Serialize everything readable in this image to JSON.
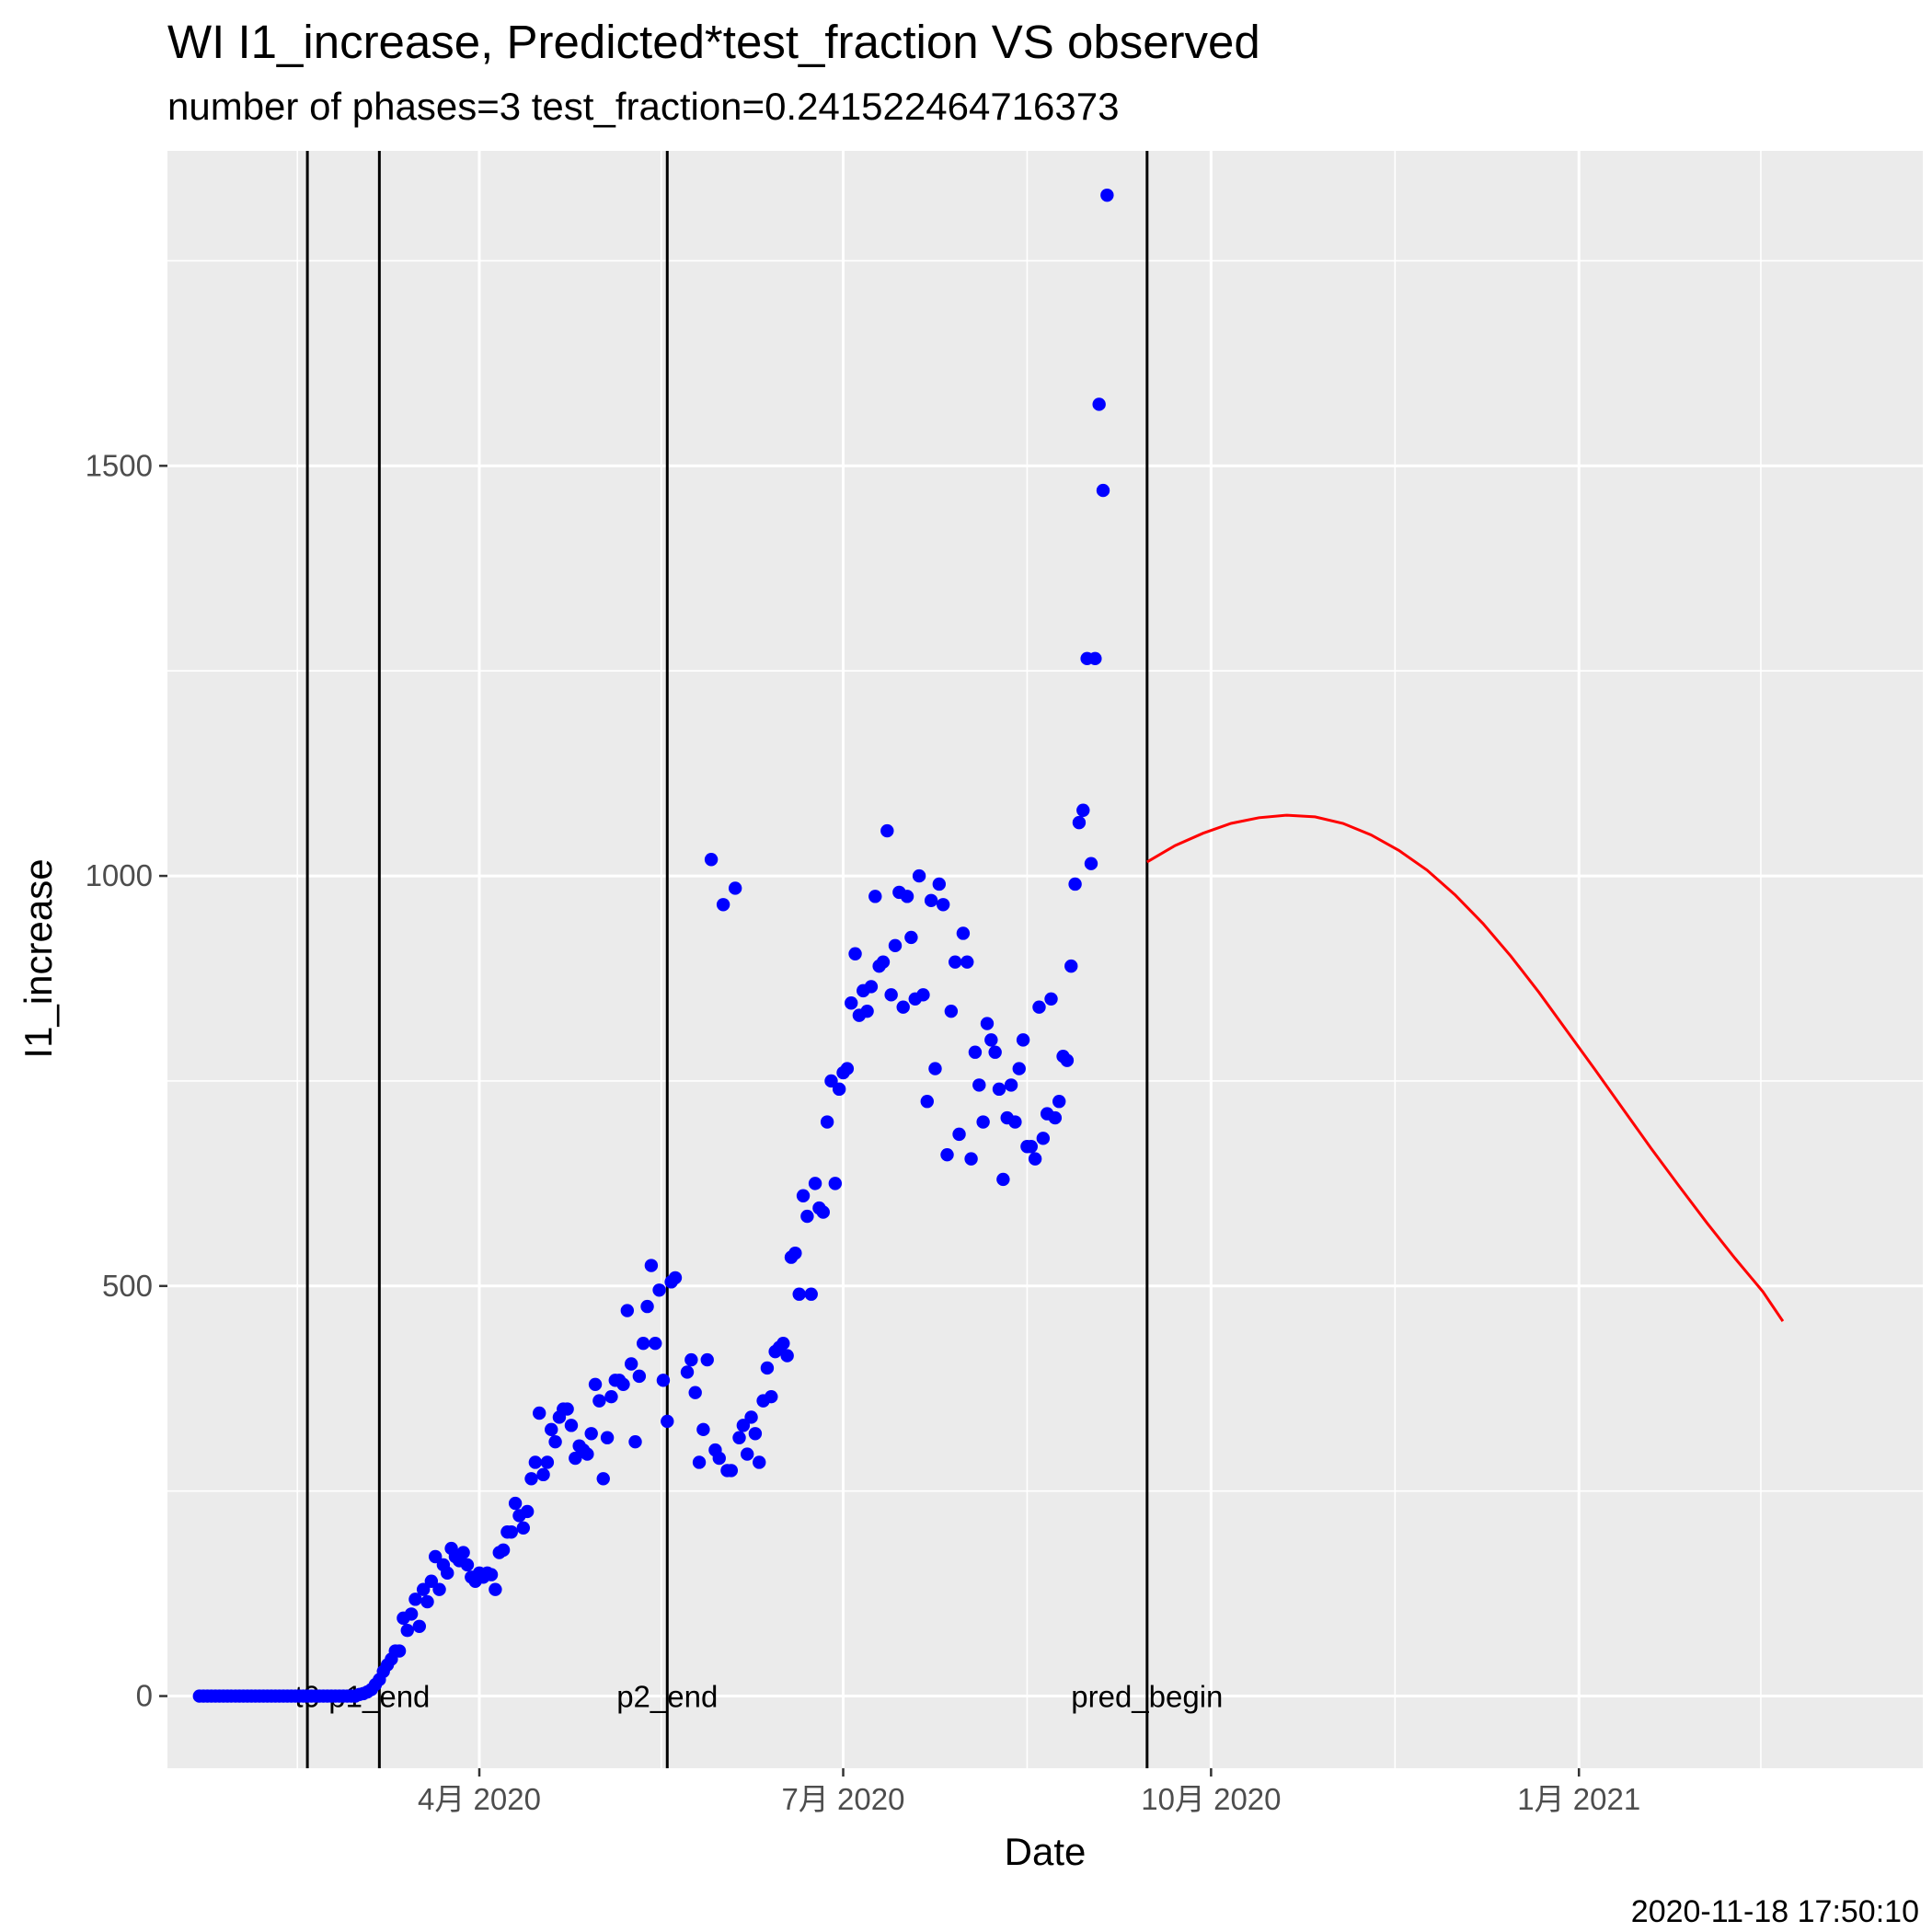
{
  "chart_data": {
    "type": "scatter",
    "title": "WI I1_increase, Predicted*test_fraction VS observed",
    "subtitle": "number of phases=3   test_fraction=0.241522464716373",
    "xlabel": "Date",
    "ylabel": "I1_increase",
    "timestamp": "2020-11-18 17:50:10",
    "x_type": "date",
    "xlim": [
      "2020-01-14",
      "2021-03-28"
    ],
    "ylim": [
      -88,
      1884
    ],
    "x_ticks": [
      {
        "date": "2020-04-01",
        "label": "4月 2020"
      },
      {
        "date": "2020-07-01",
        "label": "7月 2020"
      },
      {
        "date": "2020-10-01",
        "label": "10月 2020"
      },
      {
        "date": "2021-01-01",
        "label": "1月 2021"
      }
    ],
    "y_ticks": [
      0,
      500,
      1000,
      1500
    ],
    "grid": true,
    "vertical_lines": [
      {
        "date": "2020-02-18",
        "label": "t0"
      },
      {
        "date": "2020-03-07",
        "label": "p1_end"
      },
      {
        "date": "2020-05-18",
        "label": "p2_end"
      },
      {
        "date": "2020-09-15",
        "label": "pred_begin"
      }
    ],
    "series": [
      {
        "type": "scatter",
        "color": "#0000ff",
        "points": [
          [
            "2020-01-22",
            0
          ],
          [
            "2020-01-23",
            0
          ],
          [
            "2020-01-24",
            0
          ],
          [
            "2020-01-25",
            0
          ],
          [
            "2020-01-26",
            0
          ],
          [
            "2020-01-27",
            0
          ],
          [
            "2020-01-28",
            0
          ],
          [
            "2020-01-29",
            0
          ],
          [
            "2020-01-30",
            0
          ],
          [
            "2020-01-31",
            0
          ],
          [
            "2020-02-01",
            0
          ],
          [
            "2020-02-02",
            0
          ],
          [
            "2020-02-03",
            0
          ],
          [
            "2020-02-04",
            0
          ],
          [
            "2020-02-05",
            0
          ],
          [
            "2020-02-06",
            0
          ],
          [
            "2020-02-07",
            0
          ],
          [
            "2020-02-08",
            0
          ],
          [
            "2020-02-09",
            0
          ],
          [
            "2020-02-10",
            0
          ],
          [
            "2020-02-11",
            0
          ],
          [
            "2020-02-12",
            0
          ],
          [
            "2020-02-13",
            0
          ],
          [
            "2020-02-14",
            0
          ],
          [
            "2020-02-15",
            0
          ],
          [
            "2020-02-16",
            0
          ],
          [
            "2020-02-17",
            0
          ],
          [
            "2020-02-18",
            0
          ],
          [
            "2020-02-19",
            0
          ],
          [
            "2020-02-20",
            0
          ],
          [
            "2020-02-21",
            0
          ],
          [
            "2020-02-22",
            0
          ],
          [
            "2020-02-23",
            0
          ],
          [
            "2020-02-24",
            0
          ],
          [
            "2020-02-25",
            0
          ],
          [
            "2020-02-26",
            0
          ],
          [
            "2020-02-27",
            0
          ],
          [
            "2020-02-28",
            0
          ],
          [
            "2020-02-29",
            0
          ],
          [
            "2020-03-01",
            0
          ],
          [
            "2020-03-02",
            2
          ],
          [
            "2020-03-03",
            3
          ],
          [
            "2020-03-04",
            5
          ],
          [
            "2020-03-05",
            8
          ],
          [
            "2020-03-06",
            14
          ],
          [
            "2020-03-07",
            20
          ],
          [
            "2020-03-08",
            30
          ],
          [
            "2020-03-09",
            38
          ],
          [
            "2020-03-10",
            45
          ],
          [
            "2020-03-11",
            55
          ],
          [
            "2020-03-12",
            55
          ],
          [
            "2020-03-13",
            95
          ],
          [
            "2020-03-14",
            80
          ],
          [
            "2020-03-15",
            100
          ],
          [
            "2020-03-16",
            118
          ],
          [
            "2020-03-17",
            85
          ],
          [
            "2020-03-18",
            130
          ],
          [
            "2020-03-19",
            115
          ],
          [
            "2020-03-20",
            140
          ],
          [
            "2020-03-21",
            170
          ],
          [
            "2020-03-22",
            130
          ],
          [
            "2020-03-23",
            160
          ],
          [
            "2020-03-24",
            150
          ],
          [
            "2020-03-25",
            180
          ],
          [
            "2020-03-26",
            170
          ],
          [
            "2020-03-27",
            165
          ],
          [
            "2020-03-28",
            175
          ],
          [
            "2020-03-29",
            160
          ],
          [
            "2020-03-30",
            145
          ],
          [
            "2020-03-31",
            140
          ],
          [
            "2020-04-01",
            150
          ],
          [
            "2020-04-02",
            145
          ],
          [
            "2020-04-03",
            150
          ],
          [
            "2020-04-04",
            148
          ],
          [
            "2020-04-05",
            130
          ],
          [
            "2020-04-06",
            175
          ],
          [
            "2020-04-07",
            178
          ],
          [
            "2020-04-08",
            200
          ],
          [
            "2020-04-09",
            200
          ],
          [
            "2020-04-10",
            235
          ],
          [
            "2020-04-11",
            220
          ],
          [
            "2020-04-12",
            205
          ],
          [
            "2020-04-13",
            225
          ],
          [
            "2020-04-14",
            265
          ],
          [
            "2020-04-15",
            285
          ],
          [
            "2020-04-16",
            345
          ],
          [
            "2020-04-17",
            270
          ],
          [
            "2020-04-18",
            285
          ],
          [
            "2020-04-19",
            325
          ],
          [
            "2020-04-20",
            310
          ],
          [
            "2020-04-21",
            340
          ],
          [
            "2020-04-22",
            350
          ],
          [
            "2020-04-23",
            350
          ],
          [
            "2020-04-24",
            330
          ],
          [
            "2020-04-25",
            290
          ],
          [
            "2020-04-26",
            305
          ],
          [
            "2020-04-27",
            300
          ],
          [
            "2020-04-28",
            295
          ],
          [
            "2020-04-29",
            320
          ],
          [
            "2020-04-30",
            380
          ],
          [
            "2020-05-01",
            360
          ],
          [
            "2020-05-02",
            265
          ],
          [
            "2020-05-03",
            315
          ],
          [
            "2020-05-04",
            365
          ],
          [
            "2020-05-05",
            385
          ],
          [
            "2020-05-06",
            385
          ],
          [
            "2020-05-07",
            380
          ],
          [
            "2020-05-08",
            470
          ],
          [
            "2020-05-09",
            405
          ],
          [
            "2020-05-10",
            310
          ],
          [
            "2020-05-11",
            390
          ],
          [
            "2020-05-12",
            430
          ],
          [
            "2020-05-13",
            475
          ],
          [
            "2020-05-14",
            525
          ],
          [
            "2020-05-15",
            430
          ],
          [
            "2020-05-16",
            495
          ],
          [
            "2020-05-17",
            385
          ],
          [
            "2020-05-18",
            335
          ],
          [
            "2020-05-19",
            505
          ],
          [
            "2020-05-20",
            510
          ],
          [
            "2020-05-23",
            395
          ],
          [
            "2020-05-24",
            410
          ],
          [
            "2020-05-25",
            370
          ],
          [
            "2020-05-26",
            285
          ],
          [
            "2020-05-27",
            325
          ],
          [
            "2020-05-28",
            410
          ],
          [
            "2020-05-29",
            1020
          ],
          [
            "2020-05-30",
            300
          ],
          [
            "2020-05-31",
            290
          ],
          [
            "2020-06-01",
            965
          ],
          [
            "2020-06-02",
            275
          ],
          [
            "2020-06-03",
            275
          ],
          [
            "2020-06-04",
            985
          ],
          [
            "2020-06-05",
            315
          ],
          [
            "2020-06-06",
            330
          ],
          [
            "2020-06-07",
            295
          ],
          [
            "2020-06-08",
            340
          ],
          [
            "2020-06-09",
            320
          ],
          [
            "2020-06-10",
            285
          ],
          [
            "2020-06-11",
            360
          ],
          [
            "2020-06-12",
            400
          ],
          [
            "2020-06-13",
            365
          ],
          [
            "2020-06-14",
            420
          ],
          [
            "2020-06-15",
            425
          ],
          [
            "2020-06-16",
            430
          ],
          [
            "2020-06-17",
            415
          ],
          [
            "2020-06-18",
            535
          ],
          [
            "2020-06-19",
            540
          ],
          [
            "2020-06-20",
            490
          ],
          [
            "2020-06-21",
            610
          ],
          [
            "2020-06-22",
            585
          ],
          [
            "2020-06-23",
            490
          ],
          [
            "2020-06-24",
            625
          ],
          [
            "2020-06-25",
            595
          ],
          [
            "2020-06-26",
            590
          ],
          [
            "2020-06-27",
            700
          ],
          [
            "2020-06-28",
            750
          ],
          [
            "2020-06-29",
            625
          ],
          [
            "2020-06-30",
            740
          ],
          [
            "2020-07-01",
            760
          ],
          [
            "2020-07-02",
            765
          ],
          [
            "2020-07-03",
            845
          ],
          [
            "2020-07-04",
            905
          ],
          [
            "2020-07-05",
            830
          ],
          [
            "2020-07-06",
            860
          ],
          [
            "2020-07-07",
            835
          ],
          [
            "2020-07-08",
            865
          ],
          [
            "2020-07-09",
            975
          ],
          [
            "2020-07-10",
            890
          ],
          [
            "2020-07-11",
            895
          ],
          [
            "2020-07-12",
            1055
          ],
          [
            "2020-07-13",
            855
          ],
          [
            "2020-07-14",
            915
          ],
          [
            "2020-07-15",
            980
          ],
          [
            "2020-07-16",
            840
          ],
          [
            "2020-07-17",
            975
          ],
          [
            "2020-07-18",
            925
          ],
          [
            "2020-07-19",
            850
          ],
          [
            "2020-07-20",
            1000
          ],
          [
            "2020-07-21",
            855
          ],
          [
            "2020-07-22",
            725
          ],
          [
            "2020-07-23",
            970
          ],
          [
            "2020-07-24",
            765
          ],
          [
            "2020-07-25",
            990
          ],
          [
            "2020-07-26",
            965
          ],
          [
            "2020-07-27",
            660
          ],
          [
            "2020-07-28",
            835
          ],
          [
            "2020-07-29",
            895
          ],
          [
            "2020-07-30",
            685
          ],
          [
            "2020-07-31",
            930
          ],
          [
            "2020-08-01",
            895
          ],
          [
            "2020-08-02",
            655
          ],
          [
            "2020-08-03",
            785
          ],
          [
            "2020-08-04",
            745
          ],
          [
            "2020-08-05",
            700
          ],
          [
            "2020-08-06",
            820
          ],
          [
            "2020-08-07",
            800
          ],
          [
            "2020-08-08",
            785
          ],
          [
            "2020-08-09",
            740
          ],
          [
            "2020-08-10",
            630
          ],
          [
            "2020-08-11",
            705
          ],
          [
            "2020-08-12",
            745
          ],
          [
            "2020-08-13",
            700
          ],
          [
            "2020-08-14",
            765
          ],
          [
            "2020-08-15",
            800
          ],
          [
            "2020-08-16",
            670
          ],
          [
            "2020-08-17",
            670
          ],
          [
            "2020-08-18",
            655
          ],
          [
            "2020-08-19",
            840
          ],
          [
            "2020-08-20",
            680
          ],
          [
            "2020-08-21",
            710
          ],
          [
            "2020-08-22",
            850
          ],
          [
            "2020-08-23",
            705
          ],
          [
            "2020-08-24",
            725
          ],
          [
            "2020-08-25",
            780
          ],
          [
            "2020-08-26",
            775
          ],
          [
            "2020-08-27",
            890
          ],
          [
            "2020-08-28",
            990
          ],
          [
            "2020-08-29",
            1065
          ],
          [
            "2020-08-30",
            1080
          ],
          [
            "2020-08-31",
            1265
          ],
          [
            "2020-09-01",
            1015
          ],
          [
            "2020-09-02",
            1265
          ],
          [
            "2020-09-03",
            1575
          ],
          [
            "2020-09-04",
            1470
          ],
          [
            "2020-09-05",
            1830
          ]
        ]
      },
      {
        "type": "line",
        "color": "#ff0000",
        "points": [
          [
            "2020-09-15",
            1017
          ],
          [
            "2020-09-22",
            1037
          ],
          [
            "2020-09-29",
            1052
          ],
          [
            "2020-10-06",
            1064
          ],
          [
            "2020-10-13",
            1071
          ],
          [
            "2020-10-20",
            1074
          ],
          [
            "2020-10-27",
            1072
          ],
          [
            "2020-11-03",
            1064
          ],
          [
            "2020-11-10",
            1050
          ],
          [
            "2020-11-17",
            1031
          ],
          [
            "2020-11-24",
            1007
          ],
          [
            "2020-12-01",
            977
          ],
          [
            "2020-12-08",
            942
          ],
          [
            "2020-12-15",
            902
          ],
          [
            "2020-12-22",
            858
          ],
          [
            "2020-12-29",
            811
          ],
          [
            "2021-01-05",
            764
          ],
          [
            "2021-01-12",
            716
          ],
          [
            "2021-01-19",
            668
          ],
          [
            "2021-01-26",
            622
          ],
          [
            "2021-02-02",
            577
          ],
          [
            "2021-02-09",
            534
          ],
          [
            "2021-02-16",
            493
          ],
          [
            "2021-02-21",
            457
          ]
        ]
      }
    ]
  }
}
